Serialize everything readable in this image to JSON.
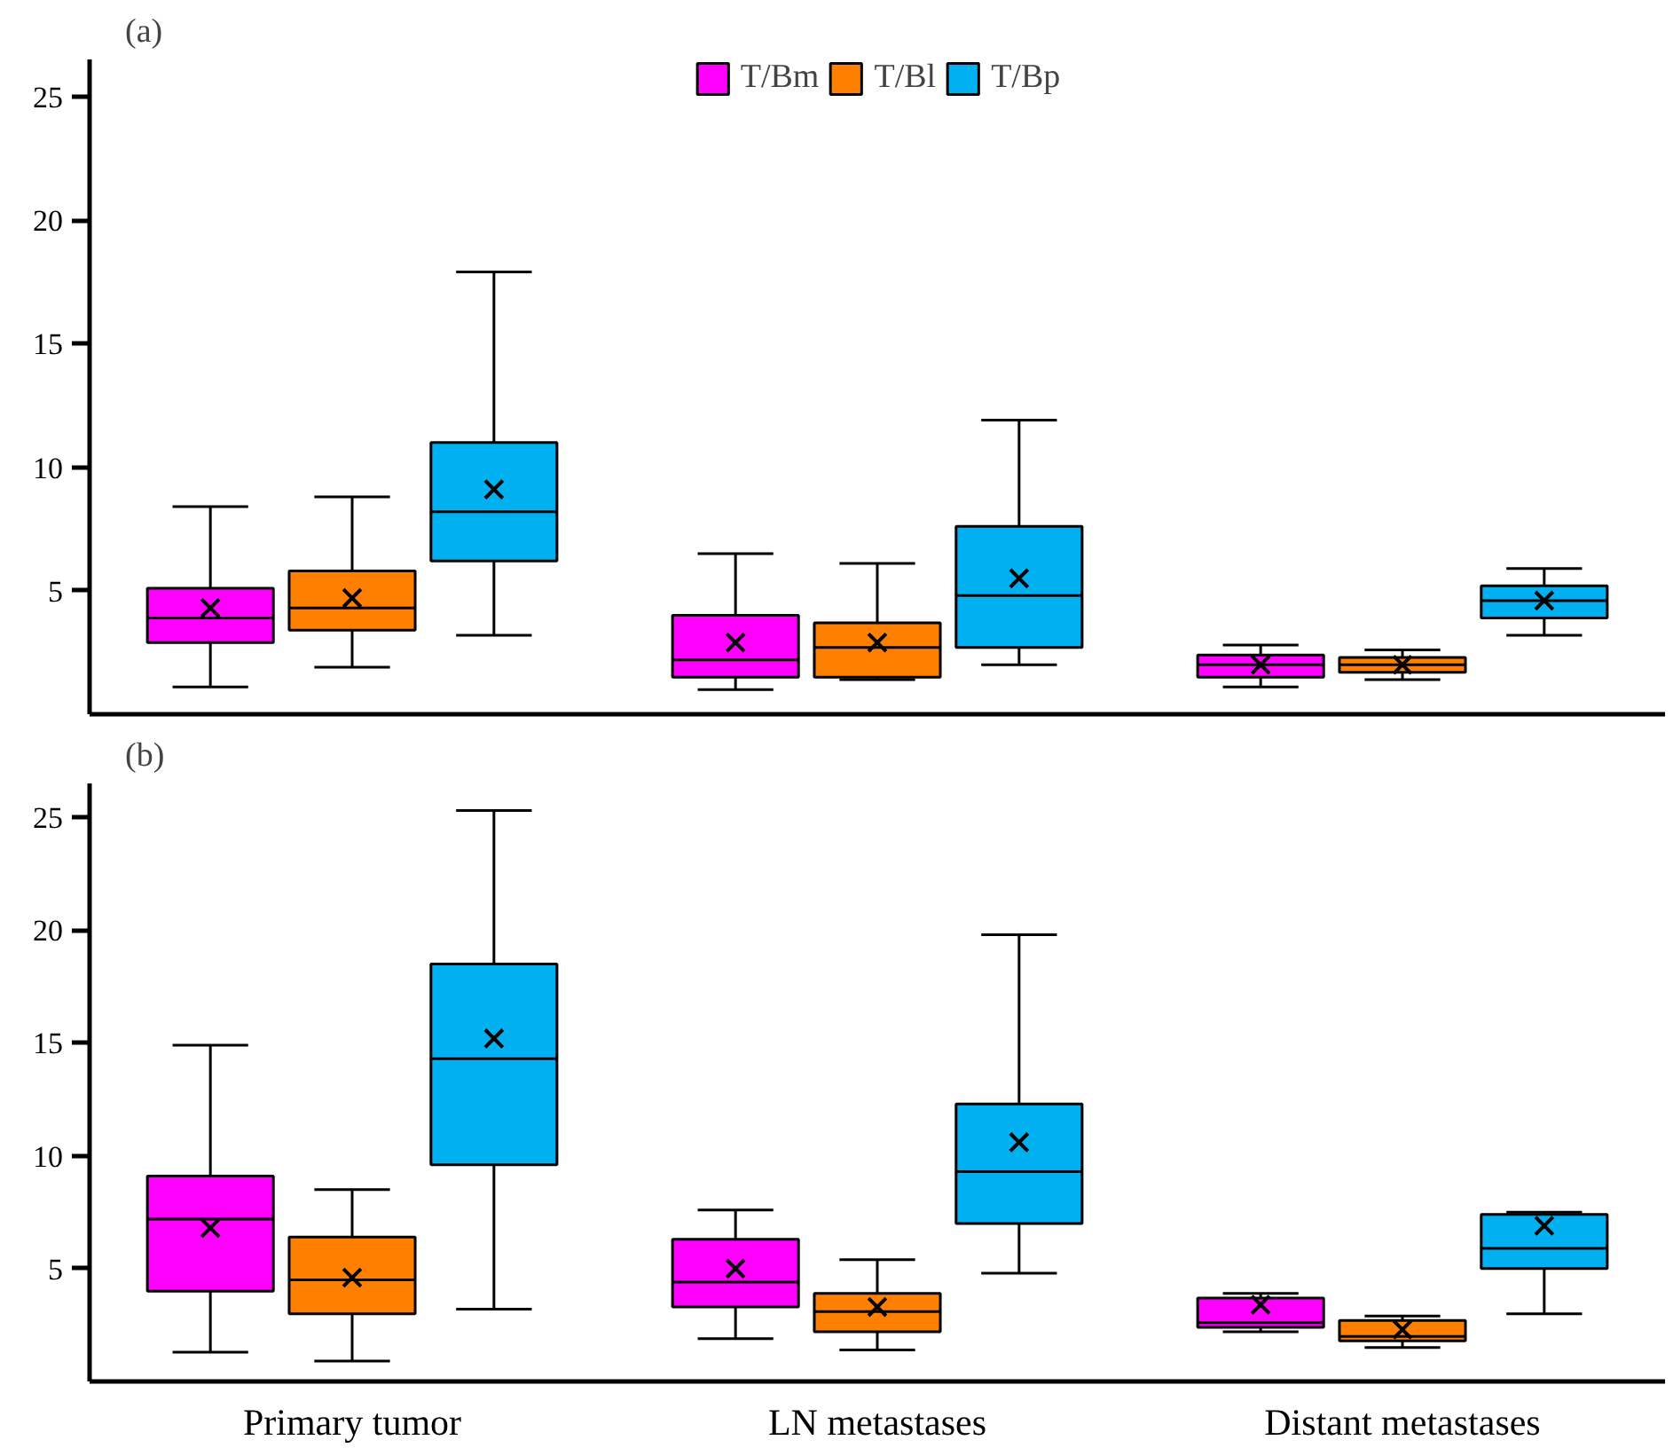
{
  "chart_data": [
    {
      "type": "box",
      "title": "(a)",
      "categories": [
        null,
        null,
        null
      ],
      "ylim": [
        0,
        26.5
      ],
      "yticks": [
        5,
        10,
        15,
        20,
        25
      ],
      "grid": false,
      "legend": "top",
      "series": [
        {
          "name": "T/Bm",
          "color": "#ff00ff",
          "boxes": [
            {
              "low": 1.1,
              "q1": 2.9,
              "median": 3.9,
              "q3": 5.1,
              "high": 8.4,
              "mean": 4.3
            },
            {
              "low": 1.0,
              "q1": 1.5,
              "median": 2.2,
              "q3": 4.0,
              "high": 6.5,
              "mean": 2.9
            },
            {
              "low": 1.1,
              "q1": 1.5,
              "median": 2.0,
              "q3": 2.4,
              "high": 2.8,
              "mean": 2.0
            }
          ]
        },
        {
          "name": "T/Bl",
          "color": "#ff7f00",
          "boxes": [
            {
              "low": 1.9,
              "q1": 3.4,
              "median": 4.3,
              "q3": 5.8,
              "high": 8.8,
              "mean": 4.7
            },
            {
              "low": 1.4,
              "q1": 1.5,
              "median": 2.7,
              "q3": 3.7,
              "high": 6.1,
              "mean": 2.9
            },
            {
              "low": 1.4,
              "q1": 1.7,
              "median": 2.0,
              "q3": 2.3,
              "high": 2.6,
              "mean": 2.0
            }
          ]
        },
        {
          "name": "T/Bp",
          "color": "#00b0f0",
          "boxes": [
            {
              "low": 3.2,
              "q1": 6.2,
              "median": 8.2,
              "q3": 11.0,
              "high": 17.9,
              "mean": 9.1
            },
            {
              "low": 2.0,
              "q1": 2.7,
              "median": 4.8,
              "q3": 7.6,
              "high": 11.9,
              "mean": 5.5
            },
            {
              "low": 3.2,
              "q1": 3.9,
              "median": 4.6,
              "q3": 5.2,
              "high": 5.9,
              "mean": 4.6
            }
          ]
        }
      ]
    },
    {
      "type": "box",
      "title": "(b)",
      "categories": [
        "Primary tumor",
        "LN metastases",
        "Distant metastases"
      ],
      "ylim": [
        0,
        26.5
      ],
      "yticks": [
        5,
        10,
        15,
        20,
        25
      ],
      "grid": false,
      "series": [
        {
          "color": "#ff00ff",
          "boxes": [
            {
              "low": 1.3,
              "q1": 4.0,
              "median": 7.2,
              "q3": 9.1,
              "high": 14.9,
              "mean": 6.8
            },
            {
              "low": 1.9,
              "q1": 3.3,
              "median": 4.4,
              "q3": 6.3,
              "high": 7.6,
              "mean": 5.0
            },
            {
              "low": 2.2,
              "q1": 2.4,
              "median": 2.6,
              "q3": 3.7,
              "high": 3.9,
              "mean": 3.4
            }
          ]
        },
        {
          "color": "#ff7f00",
          "boxes": [
            {
              "low": 0.9,
              "q1": 3.0,
              "median": 4.5,
              "q3": 6.4,
              "high": 8.5,
              "mean": 4.6
            },
            {
              "low": 1.4,
              "q1": 2.2,
              "median": 3.1,
              "q3": 3.9,
              "high": 5.4,
              "mean": 3.3
            },
            {
              "low": 1.5,
              "q1": 1.8,
              "median": 2.0,
              "q3": 2.7,
              "high": 2.9,
              "mean": 2.3
            }
          ]
        },
        {
          "color": "#00b0f0",
          "boxes": [
            {
              "low": 3.2,
              "q1": 9.6,
              "median": 14.3,
              "q3": 18.5,
              "high": 25.3,
              "mean": 15.2
            },
            {
              "low": 4.8,
              "q1": 7.0,
              "median": 9.3,
              "q3": 12.3,
              "high": 19.8,
              "mean": 10.6
            },
            {
              "low": 3.0,
              "q1": 5.0,
              "median": 5.9,
              "q3": 7.4,
              "high": 7.5,
              "mean": 6.9
            }
          ]
        }
      ]
    }
  ]
}
